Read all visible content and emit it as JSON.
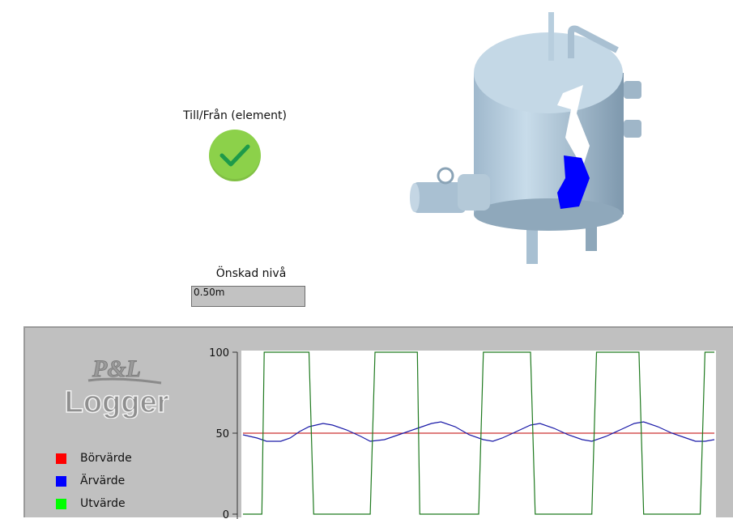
{
  "toggle": {
    "label": "Till/Från (element)",
    "state": "on",
    "icon": "check-icon",
    "color": "#8cd14a"
  },
  "level": {
    "label": "Önskad nivå",
    "value": "0.50m"
  },
  "tank": {
    "icon": "water-tank-icon",
    "water_color": "#0000ff"
  },
  "logger": {
    "logo_line1": "P&L",
    "logo_line2": "Logger",
    "legend": [
      {
        "label": "Börvärde",
        "color": "#ff0000"
      },
      {
        "label": "Ärvärde",
        "color": "#0000ff"
      },
      {
        "label": "Utvärde",
        "color": "#00ff00"
      }
    ]
  },
  "chart_data": {
    "type": "line",
    "ylim": [
      0,
      100
    ],
    "yticks": [
      100,
      50,
      0
    ],
    "xlim": [
      0,
      100
    ],
    "grid": false,
    "series": [
      {
        "name": "Börvärde",
        "color": "#cc3333",
        "points": [
          [
            0,
            50
          ],
          [
            100,
            50
          ]
        ]
      },
      {
        "name": "Ärvärde",
        "color": "#1a1aa8",
        "points": [
          [
            0,
            49
          ],
          [
            3,
            47
          ],
          [
            5,
            45
          ],
          [
            8,
            45
          ],
          [
            10,
            47
          ],
          [
            12,
            51
          ],
          [
            14,
            54
          ],
          [
            17,
            56
          ],
          [
            19,
            55
          ],
          [
            22,
            52
          ],
          [
            25,
            48
          ],
          [
            27,
            45
          ],
          [
            30,
            46
          ],
          [
            33,
            49
          ],
          [
            37,
            53
          ],
          [
            40,
            56
          ],
          [
            42,
            57
          ],
          [
            45,
            54
          ],
          [
            48,
            49
          ],
          [
            51,
            46
          ],
          [
            53,
            45
          ],
          [
            55,
            47
          ],
          [
            58,
            51
          ],
          [
            61,
            55
          ],
          [
            63,
            56
          ],
          [
            66,
            53
          ],
          [
            69,
            49
          ],
          [
            72,
            46
          ],
          [
            74,
            45
          ],
          [
            77,
            48
          ],
          [
            80,
            52
          ],
          [
            83,
            56
          ],
          [
            85,
            57
          ],
          [
            88,
            54
          ],
          [
            91,
            50
          ],
          [
            94,
            47
          ],
          [
            96,
            45
          ],
          [
            98,
            45
          ],
          [
            100,
            46
          ]
        ]
      },
      {
        "name": "Utvärde",
        "color": "#1f7a1f",
        "points": [
          [
            0,
            0
          ],
          [
            4,
            0
          ],
          [
            4.5,
            100
          ],
          [
            14,
            100
          ],
          [
            15,
            0
          ],
          [
            27,
            0
          ],
          [
            28,
            100
          ],
          [
            37,
            100
          ],
          [
            37.5,
            0
          ],
          [
            50,
            0
          ],
          [
            51,
            100
          ],
          [
            61,
            100
          ],
          [
            62,
            0
          ],
          [
            74,
            0
          ],
          [
            75,
            100
          ],
          [
            84,
            100
          ],
          [
            85,
            0
          ],
          [
            97,
            0
          ],
          [
            98,
            100
          ],
          [
            100,
            100
          ]
        ]
      }
    ]
  }
}
